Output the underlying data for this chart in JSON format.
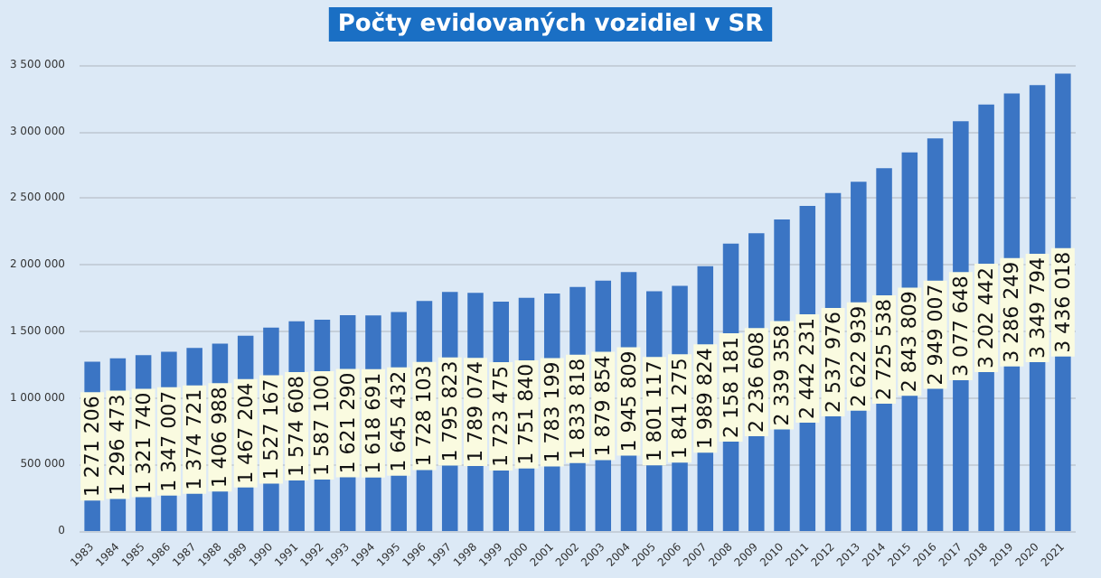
{
  "chart_data": {
    "type": "bar",
    "title": "Počty evidovaných vozidiel v SR",
    "categories": [
      "1983",
      "1984",
      "1985",
      "1986",
      "1987",
      "1988",
      "1989",
      "1990",
      "1991",
      "1992",
      "1993",
      "1994",
      "1995",
      "1996",
      "1997",
      "1998",
      "1999",
      "2000",
      "2001",
      "2002",
      "2003",
      "2004",
      "2005",
      "2006",
      "2007",
      "2008",
      "2009",
      "2010",
      "2011",
      "2012",
      "2013",
      "2014",
      "2015",
      "2016",
      "2017",
      "2018",
      "2019",
      "2020",
      "2021"
    ],
    "values": [
      1271206,
      1296473,
      1321740,
      1347007,
      1374721,
      1406988,
      1467204,
      1527167,
      1574608,
      1587100,
      1621290,
      1618691,
      1645432,
      1728103,
      1795823,
      1789074,
      1723475,
      1751840,
      1783199,
      1833818,
      1879854,
      1945809,
      1801117,
      1841275,
      1989824,
      2158181,
      2236608,
      2339358,
      2442231,
      2537976,
      2622939,
      2725538,
      2843809,
      2949007,
      3077648,
      3202442,
      3286249,
      3349794,
      3436018
    ],
    "value_labels": [
      "1 271 206",
      "1 296 473",
      "1 321 740",
      "1 347 007",
      "1 374 721",
      "1 406 988",
      "1 467 204",
      "1 527 167",
      "1 574 608",
      "1 587 100",
      "1 621 290",
      "1 618 691",
      "1 645 432",
      "1 728 103",
      "1 795 823",
      "1 789 074",
      "1 723 475",
      "1 751 840",
      "1 783 199",
      "1 833 818",
      "1 879 854",
      "1 945 809",
      "1 801 117",
      "1 841 275",
      "1 989 824",
      "2 158 181",
      "2 236 608",
      "2 339 358",
      "2 442 231",
      "2 537 976",
      "2 622 939",
      "2 725 538",
      "2 843 809",
      "2 949 007",
      "3 077 648",
      "3 202 442",
      "3 286 249",
      "3 349 794",
      "3 436 018"
    ],
    "color": "#3b75c4",
    "ylim": [
      0,
      3500000
    ],
    "yticks": [
      {
        "value": 0,
        "label": "0"
      },
      {
        "value": 500000,
        "label": "500 000"
      },
      {
        "value": 1000000,
        "label": "1 000 000"
      },
      {
        "value": 1500000,
        "label": "1 500 000"
      },
      {
        "value": 2000000,
        "label": "2 000 000"
      },
      {
        "value": 2500000,
        "label": "2 500 000"
      },
      {
        "value": 3000000,
        "label": "3 000 000"
      },
      {
        "value": 3500000,
        "label": "3 500 000"
      }
    ],
    "grid": "y"
  }
}
